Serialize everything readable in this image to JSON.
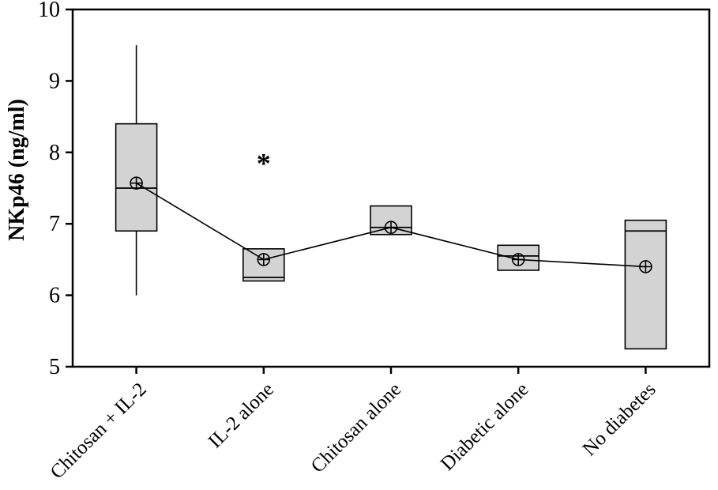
{
  "figure": {
    "background": "#ffffff"
  },
  "chart_data": {
    "type": "boxplot",
    "title": "",
    "xlabel": "",
    "ylabel": "NKp46 (ng/ml)",
    "ylim": [
      5,
      10
    ],
    "yticks": [
      5,
      6,
      7,
      8,
      9,
      10
    ],
    "grid": false,
    "legend": null,
    "categories": [
      "Chitosan + IL-2",
      "IL-2 alone",
      "Chitosan alone",
      "Diabetic alone",
      "No diabetes"
    ],
    "boxes": [
      {
        "category": "Chitosan + IL-2",
        "whisker_low": 6.0,
        "q1": 6.9,
        "median": 7.5,
        "q3": 8.4,
        "whisker_high": 9.5,
        "mean": 7.57
      },
      {
        "category": "IL-2 alone",
        "whisker_low": null,
        "q1": 6.2,
        "median": 6.25,
        "q3": 6.65,
        "whisker_high": null,
        "mean": 6.5,
        "annotation": "*",
        "annotation_value": 7.85
      },
      {
        "category": "Chitosan alone",
        "whisker_low": null,
        "q1": 6.85,
        "median": 6.95,
        "q3": 7.25,
        "whisker_high": null,
        "mean": 6.95
      },
      {
        "category": "Diabetic alone",
        "whisker_low": null,
        "q1": 6.35,
        "median": 6.55,
        "q3": 6.7,
        "whisker_high": null,
        "mean": 6.5
      },
      {
        "category": "No diabetes",
        "whisker_low": null,
        "q1": 5.25,
        "median": 6.9,
        "q3": 7.05,
        "whisker_high": null,
        "mean": 6.4
      }
    ],
    "mean_line": true,
    "mean_values": [
      7.57,
      6.5,
      6.95,
      6.5,
      6.4
    ],
    "styles": {
      "box_fill": "#d3d3d3",
      "stroke": "#000000",
      "mean_marker": "circle-plus"
    }
  }
}
